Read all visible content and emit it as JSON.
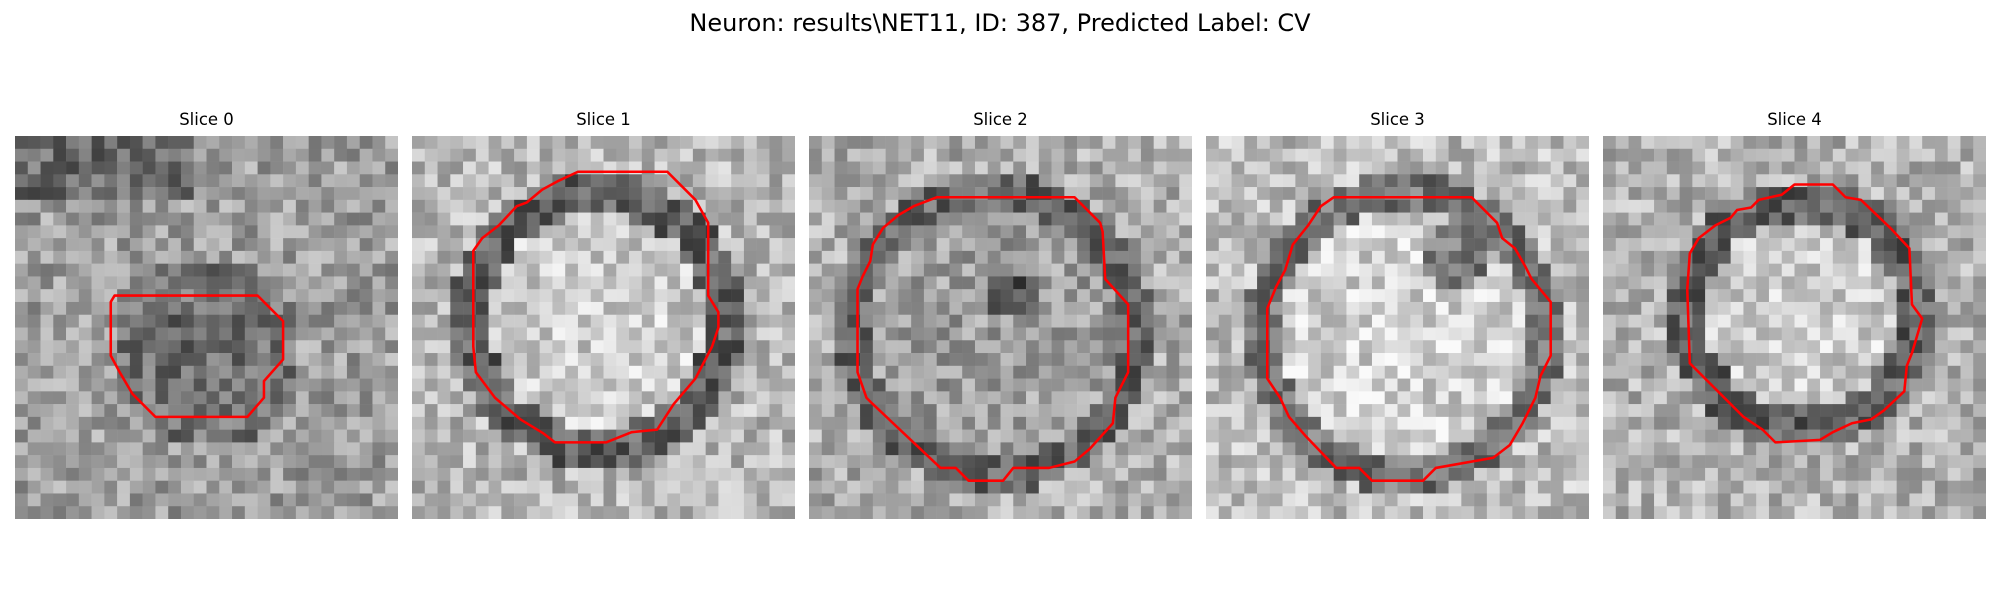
{
  "figure": {
    "title": "Neuron: results\\NET11, ID: 387, Predicted Label: CV"
  },
  "panels": [
    {
      "title": "Slice 0",
      "content": "grayscale microscopy patch",
      "overlay": "red contour",
      "seed": 11
    },
    {
      "title": "Slice 1",
      "content": "grayscale microscopy patch",
      "overlay": "red contour",
      "seed": 23
    },
    {
      "title": "Slice 2",
      "content": "grayscale microscopy patch",
      "overlay": "red contour",
      "seed": 37
    },
    {
      "title": "Slice 3",
      "content": "grayscale microscopy patch",
      "overlay": "red contour",
      "seed": 41
    },
    {
      "title": "Slice 4",
      "content": "grayscale microscopy patch",
      "overlay": "red contour",
      "seed": 59
    }
  ],
  "colors": {
    "contour": "#ff0000",
    "background": "#ffffff"
  }
}
